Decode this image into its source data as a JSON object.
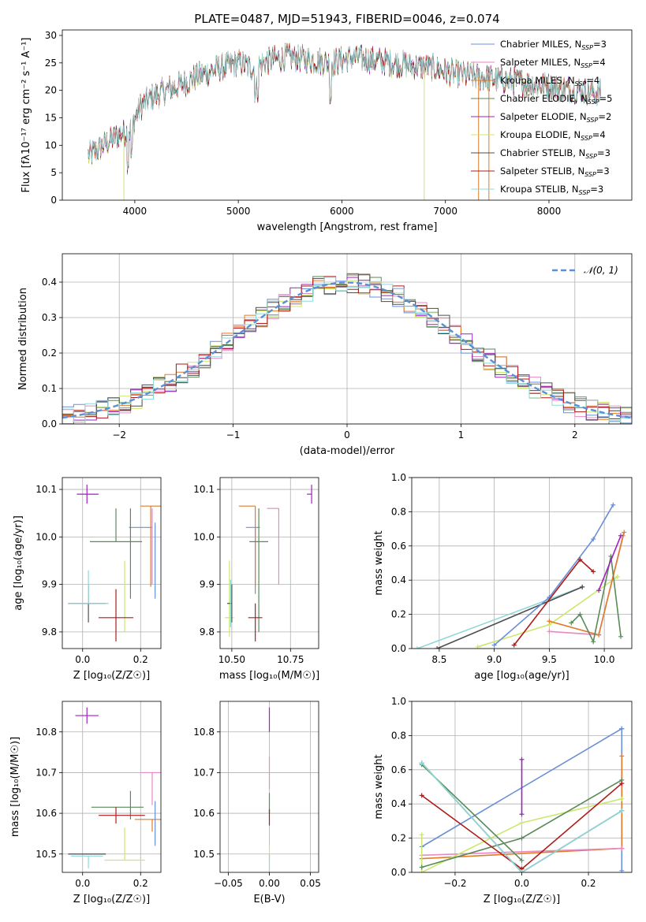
{
  "figure_title": "PLATE=0487, MJD=51943, FIBERID=0046, z=0.074",
  "colors": {
    "Chabrier MILES": "#6b8fd6",
    "Salpeter MILES": "#e78ac3",
    "Kroupa MILES": "#e07b2a",
    "Chabrier ELODIE": "#5a8a5a",
    "Salpeter ELODIE": "#a020c0",
    "Kroupa ELODIE": "#cbe86b",
    "Chabrier STELIB": "#4d4d4d",
    "Salpeter STELIB": "#b01a1a",
    "Kroupa STELIB": "#8fd8d8"
  },
  "chart_data": [
    {
      "id": "spectrum",
      "type": "line",
      "title": "",
      "xlabel": "wavelength [Angstrom, rest frame]",
      "ylabel": "Flux [fλ10⁻¹⁷ erg cm⁻² s⁻¹ A⁻¹]",
      "xlim": [
        3300,
        8800
      ],
      "ylim": [
        0,
        31
      ],
      "xticks": [
        4000,
        5000,
        6000,
        7000,
        8000
      ],
      "yticks": [
        0,
        5,
        10,
        15,
        20,
        25,
        30
      ],
      "grid": false,
      "legend": "top-right",
      "continuum": {
        "x": [
          3550,
          3700,
          3850,
          3950,
          4050,
          4150,
          4300,
          4450,
          4600,
          4800,
          5000,
          5150,
          5300,
          5500,
          5700,
          5900,
          6100,
          6300,
          6500,
          6700,
          6900,
          7100,
          7300,
          7500,
          7700,
          7900,
          8100,
          8300,
          8500
        ],
        "y": [
          8,
          10,
          12,
          12.5,
          17,
          18.5,
          20,
          21,
          22.5,
          24,
          25,
          24,
          25.5,
          26,
          25.5,
          25,
          26,
          25.5,
          25,
          24.5,
          24,
          23,
          22.5,
          22,
          21.5,
          21,
          20.5,
          20,
          19.5
        ]
      },
      "series": [
        {
          "name": "Chabrier MILES, N_SSP=3",
          "legend_label": "Chabrier MILES, N",
          "nssp": "3"
        },
        {
          "name": "Salpeter MILES, N_SSP=4",
          "legend_label": "Salpeter MILES, N",
          "nssp": "4"
        },
        {
          "name": "Kroupa MILES, N_SSP=4",
          "legend_label": "Kroupa MILES, N",
          "nssp": "4"
        },
        {
          "name": "Chabrier ELODIE, N_SSP=5",
          "legend_label": "Chabrier ELODIE, N",
          "nssp": "5"
        },
        {
          "name": "Salpeter ELODIE, N_SSP=2",
          "legend_label": "Salpeter ELODIE, N",
          "nssp": "2"
        },
        {
          "name": "Kroupa ELODIE, N_SSP=4",
          "legend_label": "Kroupa ELODIE, N",
          "nssp": "4"
        },
        {
          "name": "Chabrier STELIB, N_SSP=3",
          "legend_label": "Chabrier STELIB, N",
          "nssp": "3"
        },
        {
          "name": "Salpeter STELIB, N_SSP=3",
          "legend_label": "Salpeter STELIB, N",
          "nssp": "3"
        },
        {
          "name": "Kroupa STELIB, N_SSP=3",
          "legend_label": "Kroupa STELIB, N",
          "nssp": "3"
        }
      ],
      "legend_subscript": "SSP"
    },
    {
      "id": "residuals",
      "type": "histogram",
      "title": "",
      "xlabel": "(data-model)/error",
      "ylabel": "Normed distribution",
      "xlim": [
        -2.5,
        2.5
      ],
      "ylim": [
        0,
        0.48
      ],
      "xticks": [
        -2,
        -1,
        0,
        1,
        2
      ],
      "yticks": [
        0.0,
        0.1,
        0.2,
        0.3,
        0.4
      ],
      "grid": true,
      "legend": "top-right",
      "bin_width": 0.1,
      "bin_start": -2.5,
      "reference": {
        "name": "𝒩(0, 1)",
        "mu": 0,
        "sigma": 1
      }
    },
    {
      "id": "age-vs-Z",
      "type": "errorbar",
      "xlabel": "Z [log₁₀(Z/Z☉)]",
      "ylabel": "age  [log₁₀(age/yr)]",
      "xlim": [
        -0.07,
        0.27
      ],
      "ylim": [
        9.765,
        10.125
      ],
      "xticks": [
        0.0,
        0.2
      ],
      "yticks": [
        9.8,
        9.9,
        10.0,
        10.1
      ],
      "grid": true,
      "points": [
        {
          "series": "Chabrier MILES",
          "x": 0.25,
          "y": 9.95,
          "xerr": [
            0.0,
            0.0
          ],
          "yerr": [
            0.08,
            0.08
          ]
        },
        {
          "series": "Chabrier MILES",
          "x": 0.2,
          "y": 10.02,
          "xerr": [
            0.04,
            0.04
          ],
          "yerr": [
            0.0,
            0.0
          ]
        },
        {
          "series": "Salpeter MILES",
          "x": 0.24,
          "y": 10.06,
          "xerr": [
            0.0,
            0.0
          ],
          "yerr": [
            0.16,
            0.0
          ]
        },
        {
          "series": "Kroupa MILES",
          "x": 0.235,
          "y": 10.065,
          "xerr": [
            0.035,
            0.035
          ],
          "yerr": [
            0.17,
            0.0
          ]
        },
        {
          "series": "Chabrier ELODIE",
          "x": 0.115,
          "y": 9.99,
          "xerr": [
            0.09,
            0.09
          ],
          "yerr": [
            0.0,
            0.07
          ]
        },
        {
          "series": "Chabrier ELODIE",
          "x": 0.165,
          "y": 9.99,
          "xerr": [
            0.0,
            0.0
          ],
          "yerr": [
            0.12,
            0.07
          ]
        },
        {
          "series": "Salpeter ELODIE",
          "x": 0.015,
          "y": 10.09,
          "xerr": [
            0.035,
            0.04
          ],
          "yerr": [
            0.02,
            0.02
          ]
        },
        {
          "series": "Kroupa ELODIE",
          "x": 0.145,
          "y": 9.87,
          "xerr": [
            0.0,
            0.0
          ],
          "yerr": [
            0.07,
            0.08
          ]
        },
        {
          "series": "Chabrier STELIB",
          "x": 0.02,
          "y": 9.86,
          "xerr": [
            0.07,
            0.06
          ],
          "yerr": [
            0.04,
            0.04
          ]
        },
        {
          "series": "Salpeter STELIB",
          "x": 0.115,
          "y": 9.83,
          "xerr": [
            0.06,
            0.06
          ],
          "yerr": [
            0.05,
            0.06
          ]
        },
        {
          "series": "Kroupa STELIB",
          "x": 0.02,
          "y": 9.86,
          "xerr": [
            0.07,
            0.07
          ],
          "yerr": [
            0.0,
            0.07
          ]
        }
      ]
    },
    {
      "id": "age-vs-mass",
      "type": "errorbar",
      "xlabel": "mass [log₁₀(M/M☉)]",
      "ylabel": "",
      "xlim": [
        10.45,
        10.87
      ],
      "ylim": [
        9.765,
        10.125
      ],
      "xticks": [
        10.5,
        10.75
      ],
      "yticks": [
        9.8,
        9.9,
        10.0,
        10.1
      ],
      "grid": true,
      "points": [
        {
          "series": "Chabrier MILES",
          "x": 10.6,
          "y": 10.02,
          "xerr": [
            0.04,
            0.02
          ],
          "yerr": [
            0.14,
            0.0
          ]
        },
        {
          "series": "Salpeter MILES",
          "x": 10.7,
          "y": 10.06,
          "xerr": [
            0.05,
            0.0
          ],
          "yerr": [
            0.16,
            0.0
          ]
        },
        {
          "series": "Kroupa MILES",
          "x": 10.6,
          "y": 10.065,
          "xerr": [
            0.07,
            0.0
          ],
          "yerr": [
            0.17,
            0.0
          ]
        },
        {
          "series": "Chabrier ELODIE",
          "x": 10.615,
          "y": 9.99,
          "xerr": [
            0.04,
            0.04
          ],
          "yerr": [
            0.19,
            0.07
          ]
        },
        {
          "series": "Salpeter ELODIE",
          "x": 10.84,
          "y": 10.09,
          "xerr": [
            0.02,
            0.0
          ],
          "yerr": [
            0.02,
            0.02
          ]
        },
        {
          "series": "Kroupa ELODIE",
          "x": 10.49,
          "y": 9.83,
          "xerr": [
            0.02,
            0.02
          ],
          "yerr": [
            0.04,
            0.12
          ]
        },
        {
          "series": "Chabrier STELIB",
          "x": 10.5,
          "y": 9.86,
          "xerr": [
            0.02,
            0.0
          ],
          "yerr": [
            0.04,
            0.04
          ]
        },
        {
          "series": "Salpeter STELIB",
          "x": 10.6,
          "y": 9.83,
          "xerr": [
            0.03,
            0.03
          ],
          "yerr": [
            0.05,
            0.03
          ]
        },
        {
          "series": "Kroupa STELIB",
          "x": 10.495,
          "y": 9.86,
          "xerr": [
            0.0,
            0.0
          ],
          "yerr": [
            0.05,
            0.05
          ]
        }
      ]
    },
    {
      "id": "weight-vs-age",
      "type": "line",
      "xlabel": "age  [log₁₀(age/yr)]",
      "ylabel": "mass weight",
      "xlim": [
        8.25,
        10.25
      ],
      "ylim": [
        0,
        1
      ],
      "xticks": [
        8.5,
        9.0,
        9.5,
        10.0
      ],
      "yticks": [
        0.0,
        0.2,
        0.4,
        0.6,
        0.8,
        1.0
      ],
      "grid": true,
      "series": [
        {
          "series": "Kroupa STELIB",
          "x": [
            8.3,
            9.8
          ],
          "y": [
            0.0,
            0.36
          ]
        },
        {
          "series": "Chabrier STELIB",
          "x": [
            8.48,
            9.8
          ],
          "y": [
            0.0,
            0.36
          ]
        },
        {
          "series": "Kroupa ELODIE",
          "x": [
            8.85,
            9.5,
            10.12
          ],
          "y": [
            0.01,
            0.14,
            0.42
          ]
        },
        {
          "series": "Chabrier MILES",
          "x": [
            9.0,
            9.5,
            9.9,
            10.08
          ],
          "y": [
            0.02,
            0.3,
            0.64,
            0.84
          ]
        },
        {
          "series": "Salpeter MILES",
          "x": [
            9.5,
            9.95,
            10.17
          ],
          "y": [
            0.1,
            0.08,
            0.66
          ]
        },
        {
          "series": "Kroupa MILES",
          "x": [
            9.5,
            9.95,
            10.18
          ],
          "y": [
            0.16,
            0.08,
            0.68
          ]
        },
        {
          "series": "Chabrier ELODIE",
          "x": [
            9.7,
            9.78,
            9.9,
            10.06,
            10.15
          ],
          "y": [
            0.15,
            0.2,
            0.04,
            0.54,
            0.07
          ]
        },
        {
          "series": "Salpeter ELODIE",
          "x": [
            9.95,
            10.15
          ],
          "y": [
            0.34,
            0.66
          ]
        },
        {
          "series": "Salpeter STELIB",
          "x": [
            9.18,
            9.78,
            9.9
          ],
          "y": [
            0.02,
            0.52,
            0.45
          ]
        }
      ]
    },
    {
      "id": "mass-vs-Z",
      "type": "errorbar",
      "xlabel": "Z [log₁₀(Z/Z☉)]",
      "ylabel": "mass [log₁₀(M/M☉)]",
      "xlim": [
        -0.07,
        0.27
      ],
      "ylim": [
        10.455,
        10.875
      ],
      "xticks": [
        0.0,
        0.2
      ],
      "yticks": [
        10.5,
        10.6,
        10.7,
        10.8
      ],
      "grid": true,
      "points": [
        {
          "series": "Chabrier MILES",
          "x": 0.25,
          "y": 10.58,
          "xerr": [
            0.0,
            0.0
          ],
          "yerr": [
            0.06,
            0.05
          ]
        },
        {
          "series": "Salpeter MILES",
          "x": 0.24,
          "y": 10.7,
          "xerr": [
            0.04,
            0.03
          ],
          "yerr": [
            0.08,
            0.0
          ]
        },
        {
          "series": "Kroupa MILES",
          "x": 0.24,
          "y": 10.585,
          "xerr": [
            0.06,
            0.03
          ],
          "yerr": [
            0.03,
            0.0
          ]
        },
        {
          "series": "Chabrier ELODIE",
          "x": 0.12,
          "y": 10.615,
          "xerr": [
            0.09,
            0.09
          ],
          "yerr": [
            0.0,
            0.0
          ]
        },
        {
          "series": "Chabrier ELODIE",
          "x": 0.165,
          "y": 10.615,
          "xerr": [
            0.0,
            0.0
          ],
          "yerr": [
            0.03,
            0.04
          ]
        },
        {
          "series": "Salpeter ELODIE",
          "x": 0.015,
          "y": 10.84,
          "xerr": [
            0.04,
            0.04
          ],
          "yerr": [
            0.02,
            0.02
          ]
        },
        {
          "series": "Kroupa ELODIE",
          "x": 0.145,
          "y": 10.485,
          "xerr": [
            0.07,
            0.07
          ],
          "yerr": [
            0.0,
            0.08
          ]
        },
        {
          "series": "Chabrier STELIB",
          "x": 0.01,
          "y": 10.5,
          "xerr": [
            0.06,
            0.07
          ],
          "yerr": [
            0.0,
            0.0
          ]
        },
        {
          "series": "Salpeter STELIB",
          "x": 0.115,
          "y": 10.595,
          "xerr": [
            0.06,
            0.1
          ],
          "yerr": [
            0.02,
            0.02
          ]
        },
        {
          "series": "Kroupa STELIB",
          "x": 0.02,
          "y": 10.495,
          "xerr": [
            0.06,
            0.05
          ],
          "yerr": [
            0.03,
            0.0
          ]
        }
      ]
    },
    {
      "id": "mass-vs-EBV",
      "type": "errorbar",
      "xlabel": "E(B-V)",
      "ylabel": "",
      "xlim": [
        -0.06,
        0.06
      ],
      "ylim": [
        10.455,
        10.875
      ],
      "xticks": [
        -0.05,
        0.0,
        0.05
      ],
      "yticks": [
        10.5,
        10.6,
        10.7,
        10.8
      ],
      "grid": true,
      "points": [
        {
          "series": "Salpeter ELODIE",
          "x": 0.0,
          "y": 10.8,
          "xerr": [
            0.0,
            0.0
          ],
          "yerr": [
            0.0,
            0.06
          ]
        },
        {
          "series": "Salpeter MILES",
          "x": 0.0,
          "y": 10.7,
          "xerr": [
            0.0,
            0.0
          ],
          "yerr": [
            0.04,
            0.04
          ]
        },
        {
          "series": "Chabrier ELODIE",
          "x": 0.0,
          "y": 10.62,
          "xerr": [
            0.0,
            0.0
          ],
          "yerr": [
            0.02,
            0.03
          ]
        },
        {
          "series": "Salpeter STELIB",
          "x": 0.0,
          "y": 10.59,
          "xerr": [
            0.0,
            0.0
          ],
          "yerr": [
            0.02,
            0.02
          ]
        },
        {
          "series": "Kroupa ELODIE",
          "x": 0.0,
          "y": 10.5,
          "xerr": [
            0.0,
            0.0
          ],
          "yerr": [
            0.02,
            0.02
          ]
        },
        {
          "series": "Kroupa STELIB",
          "x": 0.0,
          "y": 10.48,
          "xerr": [
            0.0,
            0.0
          ],
          "yerr": [
            0.02,
            0.02
          ]
        }
      ]
    },
    {
      "id": "weight-vs-Z",
      "type": "line",
      "xlabel": "Z [log₁₀(Z/Z☉)]",
      "ylabel": "mass weight",
      "xlim": [
        -0.33,
        0.33
      ],
      "ylim": [
        0,
        1
      ],
      "xticks": [
        -0.2,
        0.0,
        0.2
      ],
      "yticks": [
        0.0,
        0.2,
        0.4,
        0.6,
        0.8,
        1.0
      ],
      "grid": true,
      "series": [
        {
          "series": "Chabrier MILES",
          "x": [
            -0.3,
            0.3
          ],
          "y": [
            0.15,
            0.84
          ]
        },
        {
          "series": "Chabrier MILES",
          "x": [
            0.3,
            0.3
          ],
          "y": [
            0.01,
            0.84
          ]
        },
        {
          "series": "Kroupa MILES",
          "x": [
            -0.3,
            0.3
          ],
          "y": [
            0.08,
            0.14
          ]
        },
        {
          "series": "Kroupa MILES",
          "x": [
            0.3,
            0.3
          ],
          "y": [
            0.14,
            0.68
          ]
        },
        {
          "series": "Salpeter MILES",
          "x": [
            -0.3,
            0.3
          ],
          "y": [
            0.1,
            0.14
          ]
        },
        {
          "series": "Salpeter ELODIE",
          "x": [
            0.0,
            0.0
          ],
          "y": [
            0.34,
            0.66
          ]
        },
        {
          "series": "Kroupa ELODIE",
          "x": [
            -0.3,
            -0.3,
            0.0,
            0.3
          ],
          "y": [
            0.22,
            0.0,
            0.29,
            0.43
          ]
        },
        {
          "series": "Chabrier ELODIE",
          "x": [
            -0.3,
            0.0,
            0.3
          ],
          "y": [
            0.03,
            0.2,
            0.54
          ]
        },
        {
          "series": "Chabrier ELODIE",
          "x": [
            -0.3,
            0.0
          ],
          "y": [
            0.63,
            0.07
          ]
        },
        {
          "series": "Salpeter STELIB",
          "x": [
            -0.3,
            0.0,
            0.3
          ],
          "y": [
            0.45,
            0.02,
            0.52
          ]
        },
        {
          "series": "Chabrier STELIB",
          "x": [
            -0.3,
            0.0,
            0.3
          ],
          "y": [
            0.64,
            0.0,
            0.36
          ]
        },
        {
          "series": "Kroupa STELIB",
          "x": [
            -0.3,
            0.0,
            0.3
          ],
          "y": [
            0.64,
            0.0,
            0.36
          ]
        }
      ]
    }
  ]
}
